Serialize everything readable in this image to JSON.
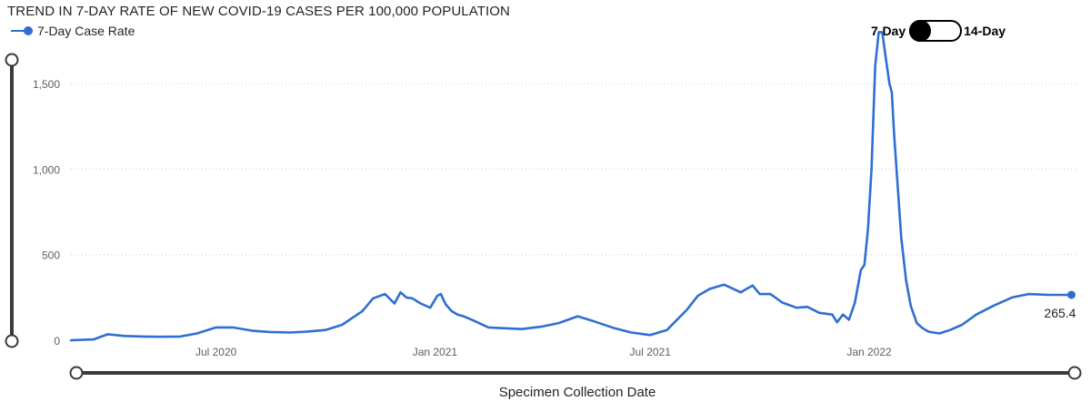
{
  "chart_data": {
    "type": "line",
    "title": "TREND IN 7-DAY RATE OF NEW COVID-19 CASES PER 100,000 POPULATION",
    "xlabel": "Specimen Collection Date",
    "ylabel": "",
    "ylim": [
      0,
      1750
    ],
    "yticks": [
      0,
      500,
      1000,
      1500
    ],
    "ytick_labels": [
      "0",
      "500",
      "1,000",
      "1,500"
    ],
    "xlim": [
      "2020-03-01",
      "2022-06-25"
    ],
    "xticks": [
      "2020-07-01",
      "2021-01-01",
      "2021-07-01",
      "2022-01-01"
    ],
    "xtick_labels": [
      "Jul 2020",
      "Jan 2021",
      "Jul 2021",
      "Jan 2022"
    ],
    "grid": "horizontal dotted",
    "legend": "top-left",
    "color": "#2e6fd1",
    "series": [
      {
        "name": "7-Day Case Rate",
        "x": [
          "2020-03-01",
          "2020-03-20",
          "2020-04-01",
          "2020-04-15",
          "2020-05-01",
          "2020-05-15",
          "2020-06-01",
          "2020-06-15",
          "2020-07-01",
          "2020-07-15",
          "2020-08-01",
          "2020-08-15",
          "2020-09-01",
          "2020-09-15",
          "2020-10-01",
          "2020-10-15",
          "2020-11-01",
          "2020-11-10",
          "2020-11-20",
          "2020-11-28",
          "2020-12-03",
          "2020-12-08",
          "2020-12-13",
          "2020-12-20",
          "2020-12-28",
          "2021-01-03",
          "2021-01-06",
          "2021-01-10",
          "2021-01-15",
          "2021-01-20",
          "2021-01-25",
          "2021-02-01",
          "2021-02-15",
          "2021-03-01",
          "2021-03-15",
          "2021-04-01",
          "2021-04-15",
          "2021-05-01",
          "2021-05-15",
          "2021-06-01",
          "2021-06-15",
          "2021-07-01",
          "2021-07-15",
          "2021-08-01",
          "2021-08-10",
          "2021-08-20",
          "2021-09-01",
          "2021-09-15",
          "2021-09-20",
          "2021-09-25",
          "2021-10-01",
          "2021-10-10",
          "2021-10-20",
          "2021-11-01",
          "2021-11-10",
          "2021-11-20",
          "2021-12-01",
          "2021-12-05",
          "2021-12-10",
          "2021-12-15",
          "2021-12-20",
          "2021-12-25",
          "2021-12-28",
          "2021-12-31",
          "2022-01-03",
          "2022-01-06",
          "2022-01-09",
          "2022-01-12",
          "2022-01-15",
          "2022-01-18",
          "2022-01-20",
          "2022-01-22",
          "2022-01-25",
          "2022-01-28",
          "2022-02-01",
          "2022-02-05",
          "2022-02-10",
          "2022-02-15",
          "2022-02-20",
          "2022-03-01",
          "2022-03-10",
          "2022-03-20",
          "2022-04-01",
          "2022-04-15",
          "2022-05-01",
          "2022-05-15",
          "2022-06-01",
          "2022-06-10",
          "2022-06-20"
        ],
        "y": [
          0,
          5,
          35,
          25,
          22,
          20,
          22,
          40,
          75,
          75,
          55,
          48,
          45,
          50,
          60,
          90,
          170,
          245,
          270,
          215,
          280,
          250,
          245,
          215,
          190,
          260,
          270,
          210,
          170,
          150,
          140,
          120,
          75,
          70,
          65,
          80,
          100,
          140,
          110,
          70,
          45,
          30,
          60,
          180,
          260,
          300,
          325,
          280,
          300,
          320,
          270,
          270,
          220,
          190,
          195,
          160,
          150,
          105,
          150,
          120,
          220,
          410,
          440,
          650,
          1000,
          1600,
          1800,
          1800,
          1650,
          1500,
          1450,
          1200,
          900,
          600,
          350,
          200,
          100,
          70,
          50,
          40,
          60,
          90,
          150,
          200,
          250,
          270,
          265.4,
          265.4,
          265.4
        ]
      }
    ],
    "last_value_label": "265.4"
  },
  "toggle": {
    "left_label": "7-Day",
    "right_label": "14-Day"
  }
}
